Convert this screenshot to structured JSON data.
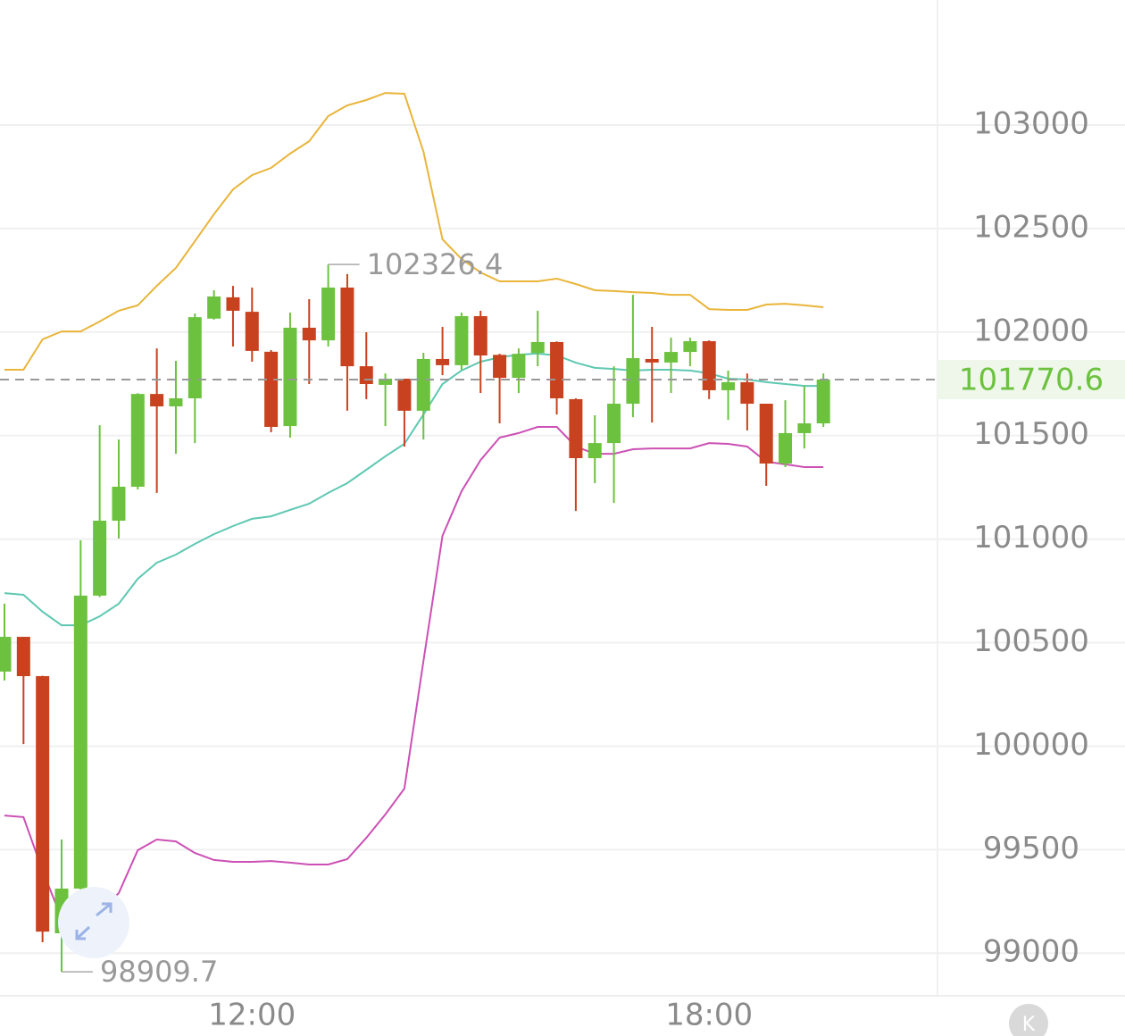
{
  "chart_data": {
    "type": "candlestick",
    "categories": [
      null,
      null,
      null,
      null,
      null,
      null,
      null,
      null,
      null,
      null,
      null,
      null,
      null,
      "12:00",
      null,
      null,
      null,
      null,
      null,
      null,
      null,
      null,
      null,
      null,
      null,
      null,
      null,
      null,
      null,
      null,
      null,
      null,
      null,
      null,
      null,
      null,
      null,
      "18:00",
      null,
      null,
      null,
      null,
      null,
      null
    ],
    "open": [
      100360,
      100528,
      100338,
      99096,
      99312,
      100727,
      101089,
      101253,
      101701,
      101641,
      101680,
      102065,
      102168,
      102098,
      101905,
      101546,
      102021,
      101960,
      102215,
      101835,
      101745,
      101775,
      101620,
      101870,
      101840,
      102077,
      101890,
      101779,
      101899,
      101952,
      101676,
      101391,
      101464,
      101654,
      101870,
      101853,
      101904,
      101956,
      101719,
      101758,
      101654,
      101365,
      101512,
      101559
    ],
    "high": [
      100688,
      100528,
      100340,
      99549,
      100994,
      101550,
      101481,
      101705,
      101921,
      101861,
      102090,
      102202,
      102223,
      102215,
      101913,
      102094,
      102159,
      102326.4,
      102280,
      101999,
      101800,
      101775,
      101900,
      102025,
      102094,
      102103,
      101895,
      101921,
      102103,
      101955,
      101680,
      101598,
      101835,
      102180,
      102025,
      101973,
      101973,
      101960,
      101814,
      101800,
      101654,
      101671,
      101740,
      101800
    ],
    "low": [
      100317,
      100010,
      99053,
      98909.7,
      99225,
      100720,
      101003,
      101240,
      101223,
      101412,
      101464,
      102060,
      101930,
      101857,
      101516,
      101490,
      101749,
      101930,
      101620,
      101676,
      101546,
      101447,
      101481,
      101792,
      101818,
      101706,
      101559,
      101706,
      101835,
      101602,
      101136,
      101270,
      101175,
      101589,
      101563,
      101706,
      101835,
      101676,
      101576,
      101525,
      101257,
      101348,
      101438,
      101542
    ],
    "close": [
      100528,
      100338,
      99104,
      99312,
      100727,
      101089,
      101253,
      101701,
      101641,
      101680,
      102072,
      102172,
      102103,
      101909,
      101542,
      102021,
      101960,
      102215,
      101835,
      101749,
      101775,
      101620,
      101870,
      101840,
      102077,
      101887,
      101779,
      101895,
      101952,
      101680,
      101391,
      101464,
      101654,
      101874,
      101853,
      101904,
      101956,
      101719,
      101758,
      101654,
      101365,
      101512,
      101559,
      101770.6
    ],
    "up_color": "#6cc23e",
    "down_color": "#c9421f",
    "bands": [
      {
        "color": "#e9b53a",
        "values": [
          101818,
          101818,
          101965,
          102003,
          102003,
          102051,
          102103,
          102129,
          102223,
          102310,
          102439,
          102569,
          102689,
          102758,
          102793,
          102862,
          102922,
          103043,
          103095,
          103121,
          103155,
          103151,
          102871,
          102448,
          102353,
          102288,
          102245,
          102245,
          102245,
          102258,
          102232,
          102202,
          102198,
          102193,
          102189,
          102180,
          102180,
          102111,
          102107,
          102107,
          102133,
          102137,
          102129,
          102120
        ]
      },
      {
        "color": "#5ec8b2",
        "values": [
          100739,
          100731,
          100649,
          100584,
          100584,
          100627,
          100688,
          100808,
          100886,
          100925,
          100977,
          101024,
          101063,
          101098,
          101110,
          101141,
          101171,
          101223,
          101270,
          101335,
          101400,
          101460,
          101602,
          101749,
          101814,
          101857,
          101878,
          101891,
          101896,
          101887,
          101852,
          101827,
          101822,
          101814,
          101818,
          101818,
          101814,
          101801,
          101775,
          101771,
          101758,
          101749,
          101740,
          101740
        ]
      },
      {
        "color": "#cc50b5",
        "values": [
          99665,
          99657,
          99398,
          99169,
          99169,
          99204,
          99290,
          99497,
          99549,
          99540,
          99484,
          99450,
          99441,
          99441,
          99445,
          99437,
          99428,
          99428,
          99454,
          99557,
          99670,
          99795,
          100412,
          101016,
          101231,
          101382,
          101490,
          101512,
          101542,
          101542,
          101447,
          101412,
          101412,
          101434,
          101438,
          101438,
          101438,
          101464,
          101460,
          101447,
          101374,
          101361,
          101348,
          101348
        ]
      }
    ],
    "ylim": [
      98794,
      103604
    ],
    "yticks": [
      99000,
      99500,
      100000,
      100500,
      101000,
      101500,
      102000,
      102500,
      103000
    ],
    "grid": true
  },
  "controls": {
    "kline_button": "K"
  }
}
